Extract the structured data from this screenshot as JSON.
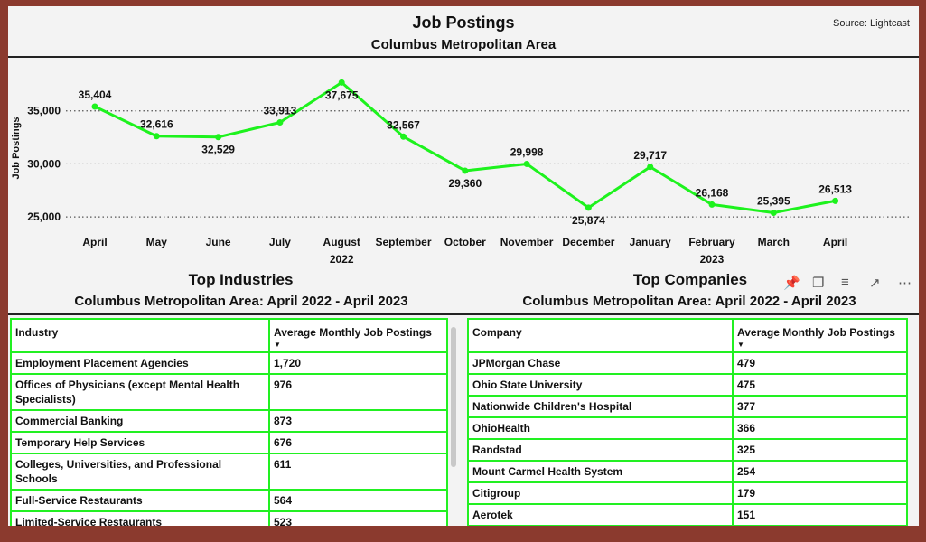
{
  "header": {
    "title": "Job Postings",
    "subtitle": "Columbus Metropolitan Area",
    "source": "Source: Lightcast"
  },
  "chart_data": {
    "type": "line",
    "ylabel": "Job Postings",
    "xlabel": "",
    "x": [
      "April",
      "May",
      "June",
      "July",
      "August",
      "September",
      "October",
      "November",
      "December",
      "January",
      "February",
      "March",
      "April"
    ],
    "year_labels": [
      {
        "index": 4,
        "label": "2022"
      },
      {
        "index": 10,
        "label": "2023"
      }
    ],
    "values": [
      35404,
      32616,
      32529,
      33913,
      37675,
      32567,
      29360,
      29998,
      25874,
      29717,
      26168,
      25395,
      26513
    ],
    "data_labels": [
      "35,404",
      "32,616",
      "32,529",
      "33,913",
      "37,675",
      "32,567",
      "29,360",
      "29,998",
      "25,874",
      "29,717",
      "26,168",
      "25,395",
      "26,513"
    ],
    "label_above": [
      true,
      true,
      false,
      true,
      false,
      true,
      false,
      true,
      false,
      true,
      true,
      true,
      true
    ],
    "yticks": [
      25000,
      30000,
      35000
    ],
    "ytick_labels": [
      "25,000",
      "30,000",
      "35,000"
    ],
    "ylim": [
      24500,
      38300
    ],
    "line_color": "#1df21d",
    "grid": "dotted"
  },
  "industries": {
    "title": "Top Industries",
    "subtitle": "Columbus Metropolitan Area: April 2022 - April 2023",
    "headers": [
      "Industry",
      "Average Monthly Job Postings"
    ],
    "rows": [
      [
        "Employment Placement Agencies",
        "1,720"
      ],
      [
        "Offices of Physicians (except Mental Health Specialists)",
        "976"
      ],
      [
        "Commercial Banking",
        "873"
      ],
      [
        "Temporary Help Services",
        "676"
      ],
      [
        "Colleges, Universities, and Professional Schools",
        "611"
      ],
      [
        "Full-Service Restaurants",
        "564"
      ],
      [
        "Limited-Service Restaurants",
        "523"
      ]
    ]
  },
  "companies": {
    "title": "Top Companies",
    "subtitle": "Columbus Metropolitan Area: April 2022 - April 2023",
    "headers": [
      "Company",
      "Average Monthly Job Postings"
    ],
    "rows": [
      [
        "JPMorgan Chase",
        "479"
      ],
      [
        "Ohio State University",
        "475"
      ],
      [
        "Nationwide Children's Hospital",
        "377"
      ],
      [
        "OhioHealth",
        "366"
      ],
      [
        "Randstad",
        "325"
      ],
      [
        "Mount Carmel Health System",
        "254"
      ],
      [
        "Citigroup",
        "179"
      ],
      [
        "Aerotek",
        "151"
      ]
    ]
  },
  "toolbar": {
    "icons": [
      "pin-icon",
      "copy-icon",
      "filter-icon",
      "focus-mode-icon",
      "more-options-icon"
    ]
  },
  "colors": {
    "border": "#22f022",
    "frame": "#8b3a2e"
  }
}
